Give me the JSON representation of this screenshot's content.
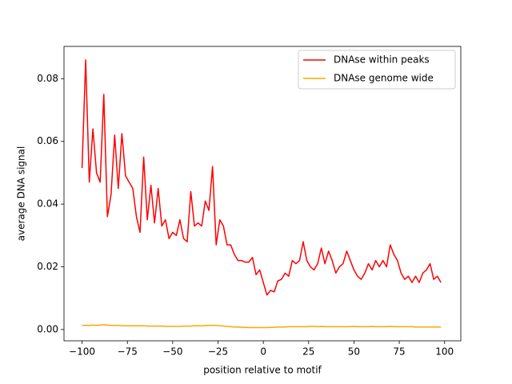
{
  "chart_data": {
    "type": "line",
    "xlabel": "position relative to motif",
    "ylabel": "average DNA signal",
    "x": [
      -100,
      -98,
      -96,
      -94,
      -92,
      -90,
      -88,
      -86,
      -84,
      -82,
      -80,
      -78,
      -76,
      -74,
      -72,
      -70,
      -68,
      -66,
      -64,
      -62,
      -60,
      -58,
      -56,
      -54,
      -52,
      -50,
      -48,
      -46,
      -44,
      -42,
      -40,
      -38,
      -36,
      -34,
      -32,
      -30,
      -28,
      -26,
      -24,
      -22,
      -20,
      -18,
      -16,
      -14,
      -12,
      -10,
      -8,
      -6,
      -4,
      -2,
      0,
      2,
      4,
      6,
      8,
      10,
      12,
      14,
      16,
      18,
      20,
      22,
      24,
      26,
      28,
      30,
      32,
      34,
      36,
      38,
      40,
      42,
      44,
      46,
      48,
      50,
      52,
      54,
      56,
      58,
      60,
      62,
      64,
      66,
      68,
      70,
      72,
      74,
      76,
      78,
      80,
      82,
      84,
      86,
      88,
      90,
      92,
      94,
      96,
      98
    ],
    "series": [
      {
        "name": "DNAse within peaks",
        "color": "#ff0000",
        "values": [
          0.0515,
          0.086,
          0.047,
          0.064,
          0.05,
          0.047,
          0.075,
          0.036,
          0.043,
          0.062,
          0.045,
          0.0625,
          0.049,
          0.047,
          0.045,
          0.036,
          0.031,
          0.055,
          0.035,
          0.046,
          0.034,
          0.045,
          0.033,
          0.035,
          0.029,
          0.031,
          0.03,
          0.035,
          0.029,
          0.028,
          0.044,
          0.033,
          0.034,
          0.033,
          0.041,
          0.038,
          0.052,
          0.027,
          0.035,
          0.033,
          0.027,
          0.027,
          0.024,
          0.022,
          0.022,
          0.0215,
          0.0215,
          0.023,
          0.0175,
          0.019,
          0.015,
          0.011,
          0.0125,
          0.012,
          0.0155,
          0.016,
          0.018,
          0.017,
          0.022,
          0.021,
          0.022,
          0.028,
          0.022,
          0.02,
          0.019,
          0.021,
          0.026,
          0.021,
          0.025,
          0.022,
          0.018,
          0.02,
          0.021,
          0.025,
          0.022,
          0.019,
          0.017,
          0.016,
          0.018,
          0.021,
          0.019,
          0.022,
          0.02,
          0.022,
          0.02,
          0.027,
          0.024,
          0.022,
          0.018,
          0.016,
          0.017,
          0.015,
          0.017,
          0.015,
          0.018,
          0.019,
          0.021,
          0.016,
          0.017,
          0.015
        ]
      },
      {
        "name": "DNAse genome wide",
        "color": "#ffa500",
        "values": [
          0.0013,
          0.0013,
          0.0013,
          0.0014,
          0.0013,
          0.0014,
          0.0015,
          0.0014,
          0.0013,
          0.0013,
          0.0013,
          0.0012,
          0.0012,
          0.0012,
          0.0012,
          0.0012,
          0.0012,
          0.0012,
          0.0011,
          0.0011,
          0.0011,
          0.0011,
          0.0011,
          0.001,
          0.001,
          0.001,
          0.001,
          0.001,
          0.0011,
          0.0011,
          0.0011,
          0.0012,
          0.0012,
          0.0012,
          0.0013,
          0.0013,
          0.0013,
          0.0013,
          0.0012,
          0.0011,
          0.001,
          0.0009,
          0.0008,
          0.0008,
          0.0007,
          0.0007,
          0.0006,
          0.0006,
          0.0006,
          0.0006,
          0.0006,
          0.0006,
          0.0007,
          0.0007,
          0.0008,
          0.0008,
          0.0008,
          0.0009,
          0.0009,
          0.0009,
          0.0009,
          0.0009,
          0.0009,
          0.001,
          0.001,
          0.0009,
          0.001,
          0.0009,
          0.0009,
          0.0009,
          0.0009,
          0.0009,
          0.0009,
          0.0009,
          0.0009,
          0.001,
          0.0009,
          0.0009,
          0.0009,
          0.0009,
          0.001,
          0.0009,
          0.0009,
          0.0009,
          0.0009,
          0.001,
          0.0009,
          0.0009,
          0.0009,
          0.0009,
          0.0009,
          0.0009,
          0.0008,
          0.0008,
          0.0008,
          0.0008,
          0.0008,
          0.0008,
          0.0008,
          0.0008
        ]
      }
    ],
    "xlim": [
      -109.95,
      108.95
    ],
    "ylim": [
      -0.0036,
      0.0903
    ],
    "xticks": [
      {
        "value": -100,
        "label": "−100"
      },
      {
        "value": -75,
        "label": "−75"
      },
      {
        "value": -50,
        "label": "−50"
      },
      {
        "value": -25,
        "label": "−25"
      },
      0,
      25,
      50,
      75,
      100
    ],
    "yticks": [
      {
        "value": 0,
        "label": "0.00"
      },
      {
        "value": 0.02,
        "label": "0.02"
      },
      {
        "value": 0.04,
        "label": "0.04"
      },
      {
        "value": 0.06,
        "label": "0.06"
      },
      {
        "value": 0.08,
        "label": "0.08"
      }
    ],
    "legend": "upper right",
    "grid": false
  }
}
